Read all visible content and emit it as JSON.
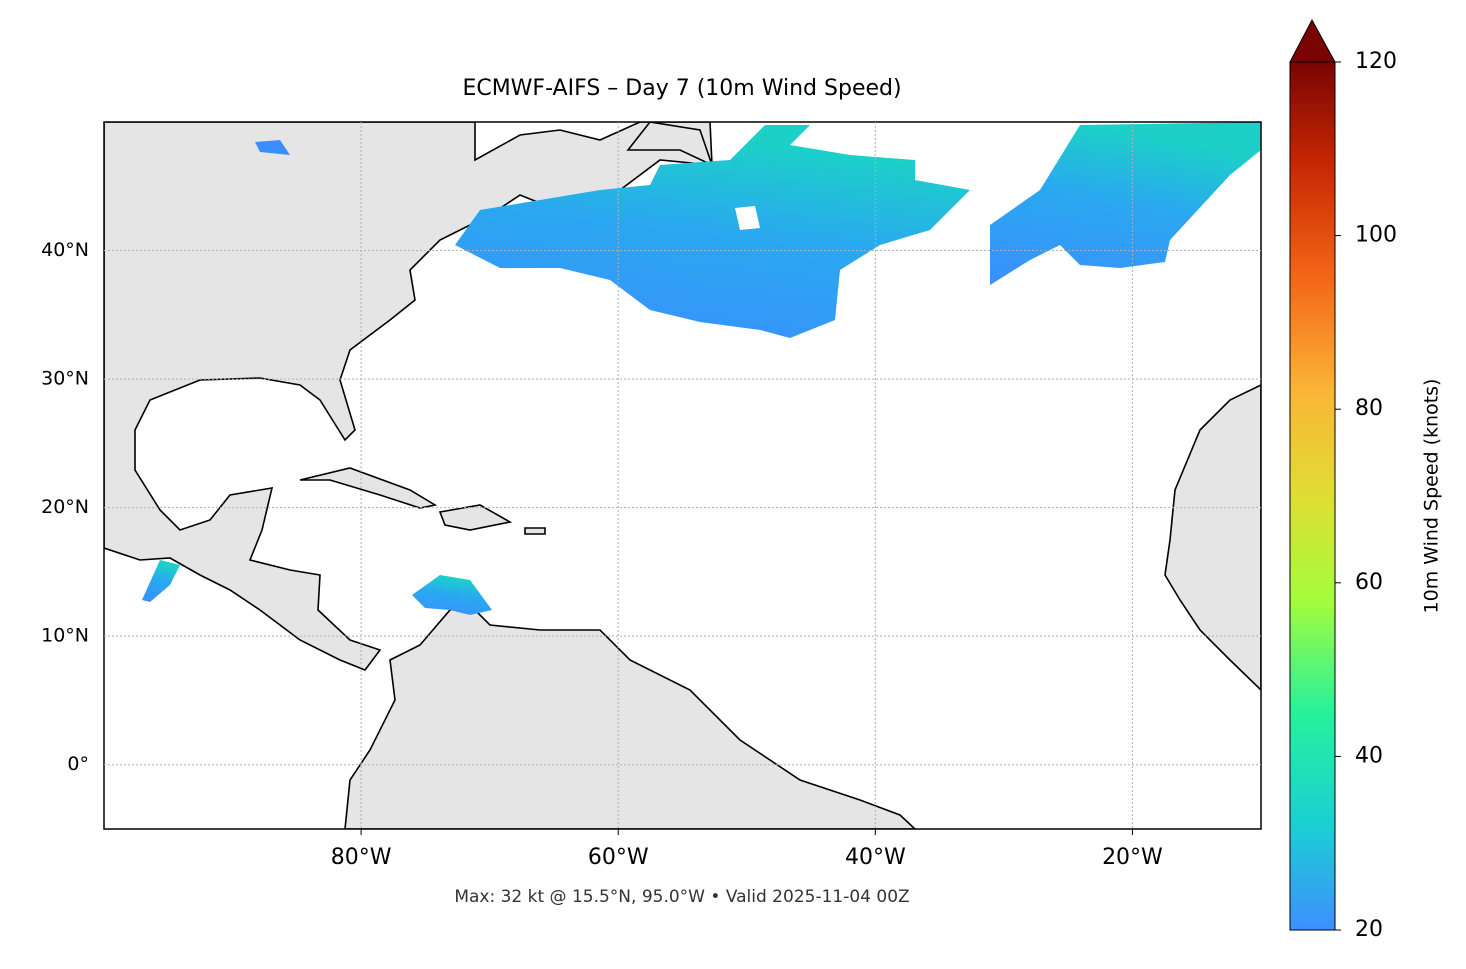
{
  "chart_data": {
    "type": "map",
    "title": "ECMWF-AIFS – Day 7 (10m Wind Speed)",
    "footnote": "Max: 32 kt @ 15.5°N, 95.0°W • Valid 2025-11-04 00Z",
    "xlim": [
      -100,
      -10
    ],
    "ylim": [
      -5,
      50
    ],
    "xticks": [
      {
        "value": -80,
        "label": "80°W"
      },
      {
        "value": -60,
        "label": "60°W"
      },
      {
        "value": -40,
        "label": "40°W"
      },
      {
        "value": -20,
        "label": "20°W"
      }
    ],
    "yticks": [
      {
        "value": 0,
        "label": "0°"
      },
      {
        "value": 10,
        "label": "10°N"
      },
      {
        "value": 20,
        "label": "20°N"
      },
      {
        "value": 30,
        "label": "30°N"
      },
      {
        "value": 40,
        "label": "40°N"
      }
    ],
    "grid": true,
    "colorbar": {
      "label": "10m Wind Speed (knots)",
      "lim": [
        20,
        120
      ],
      "ticks": [
        20,
        40,
        60,
        80,
        100,
        120
      ]
    }
  }
}
